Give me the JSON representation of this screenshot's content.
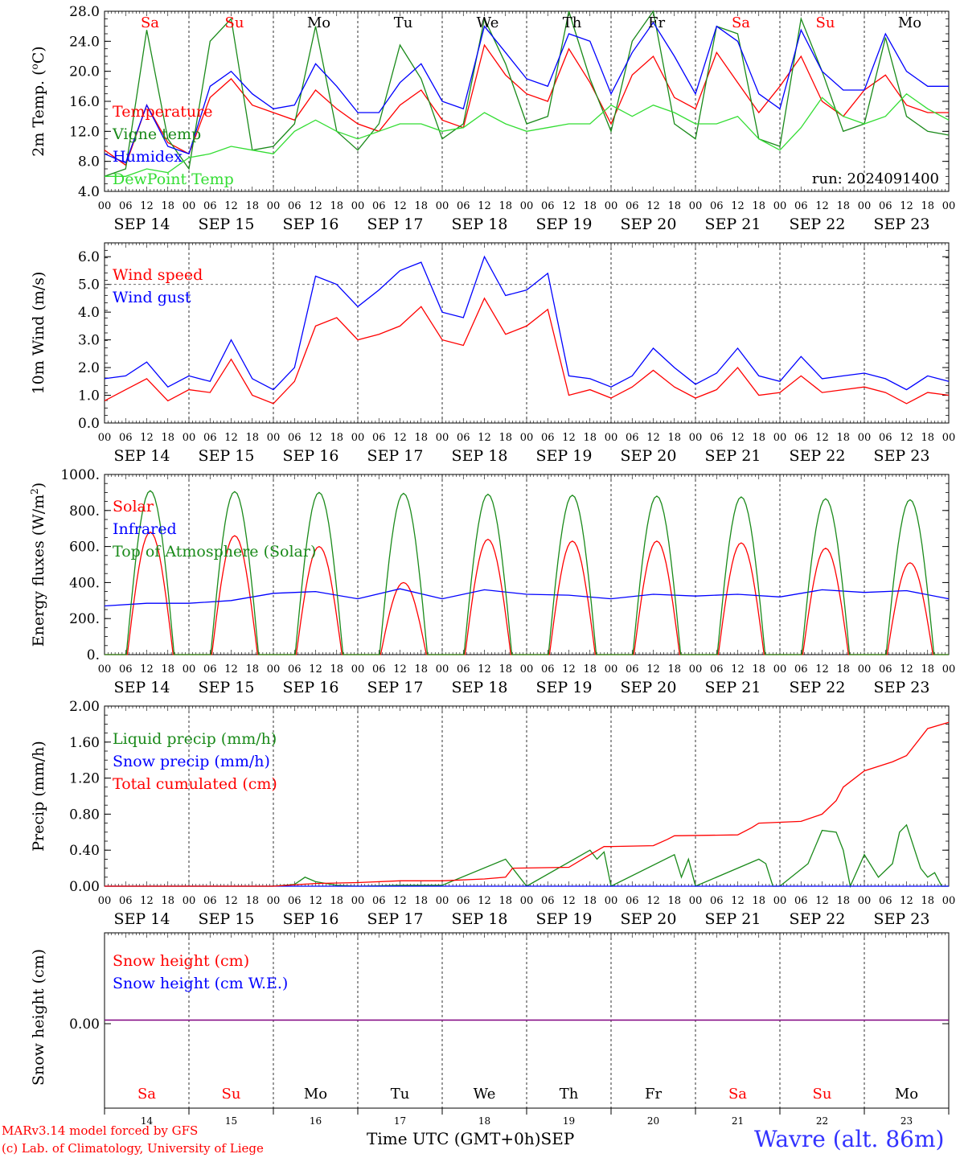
{
  "colors": {
    "red": "#ff0000",
    "green": "#1a8a1a",
    "blue": "#0000ff",
    "lightgreen": "#33dd33",
    "purple": "#800080",
    "black": "#000000",
    "station": "#3333ff"
  },
  "date_labels": [
    "SEP 14",
    "SEP 15",
    "SEP 16",
    "SEP 17",
    "SEP 18",
    "SEP 19",
    "SEP 20",
    "SEP 21",
    "SEP 22",
    "SEP 23"
  ],
  "hour_labels": [
    "00",
    "06",
    "12",
    "18"
  ],
  "end_hour_label": "00",
  "weekdays": [
    {
      "label": "Sa",
      "color": "#ff0000"
    },
    {
      "label": "Su",
      "color": "#ff0000"
    },
    {
      "label": "Mo",
      "color": "#000000"
    },
    {
      "label": "Tu",
      "color": "#000000"
    },
    {
      "label": "We",
      "color": "#000000"
    },
    {
      "label": "Th",
      "color": "#000000"
    },
    {
      "label": "Fr",
      "color": "#000000"
    },
    {
      "label": "Sa",
      "color": "#ff0000"
    },
    {
      "label": "Su",
      "color": "#ff0000"
    },
    {
      "label": "Mo",
      "color": "#000000"
    }
  ],
  "bottom_day_numbers": [
    "14",
    "15",
    "16",
    "17",
    "18",
    "19",
    "20",
    "21",
    "22",
    "23"
  ],
  "footer": {
    "credit_line1": "MARv3.14 model forced by GFS",
    "credit_line2": "(c) Lab. of Climatology, University of Liege",
    "time_axis_label": "Time UTC (GMT+0h)",
    "month_label": "SEP",
    "station": "Wavre (alt. 86m)"
  },
  "chart_data": [
    {
      "type": "line",
      "ylabel": "2m Temp. (oC)",
      "ylim": [
        4.0,
        28.0
      ],
      "yticks": [
        "4.0",
        "8.0",
        "12.0",
        "16.0",
        "20.0",
        "24.0",
        "28.0"
      ],
      "annotation": "run: 2024091400",
      "x_unit": "hours since SEP 14 00 UTC",
      "series": [
        {
          "name": "Temperature",
          "color": "#ff0000",
          "x": [
            0,
            6,
            12,
            18,
            24,
            30,
            36,
            42,
            48,
            54,
            60,
            66,
            72,
            78,
            84,
            90,
            96,
            102,
            108,
            114,
            120,
            126,
            132,
            138,
            144,
            150,
            156,
            162,
            168,
            174,
            180,
            186,
            192,
            198,
            204,
            210,
            216,
            222,
            228,
            234,
            240
          ],
          "values": [
            9.5,
            7.5,
            15.5,
            10.5,
            9.0,
            16.5,
            19.0,
            15.5,
            14.5,
            13.5,
            17.5,
            15.0,
            13.0,
            12.0,
            15.5,
            17.5,
            13.5,
            12.5,
            23.5,
            19.5,
            17.0,
            16.0,
            23.0,
            18.5,
            13.0,
            19.5,
            22.0,
            16.5,
            15.0,
            22.5,
            18.5,
            14.5,
            18.0,
            22.0,
            16.0,
            14.0,
            17.5,
            19.5,
            15.5,
            14.5,
            14.5
          ]
        },
        {
          "name": "Vigne temp",
          "color": "#1a8a1a",
          "x": [
            0,
            6,
            12,
            18,
            24,
            30,
            36,
            42,
            48,
            54,
            60,
            66,
            72,
            78,
            84,
            90,
            96,
            102,
            108,
            114,
            120,
            126,
            132,
            138,
            144,
            150,
            156,
            162,
            168,
            174,
            180,
            186,
            192,
            198,
            204,
            210,
            216,
            222,
            228,
            234,
            240
          ],
          "values": [
            6.0,
            7.0,
            25.5,
            11.0,
            7.0,
            24.0,
            27.0,
            9.5,
            10.0,
            13.0,
            26.0,
            12.0,
            9.5,
            13.0,
            23.5,
            19.0,
            11.0,
            13.0,
            27.0,
            21.0,
            13.0,
            14.0,
            28.0,
            19.0,
            12.0,
            24.0,
            28.0,
            13.0,
            11.0,
            26.0,
            25.0,
            11.0,
            10.0,
            27.0,
            20.0,
            12.0,
            13.0,
            24.5,
            14.0,
            12.0,
            11.5
          ]
        },
        {
          "name": "Humidex",
          "color": "#0000ff",
          "x": [
            0,
            6,
            12,
            18,
            24,
            30,
            36,
            42,
            48,
            54,
            60,
            66,
            72,
            78,
            84,
            90,
            96,
            102,
            108,
            114,
            120,
            126,
            132,
            138,
            144,
            150,
            156,
            162,
            168,
            174,
            180,
            186,
            192,
            198,
            204,
            210,
            216,
            222,
            228,
            234,
            240
          ],
          "values": [
            9.0,
            7.8,
            15.5,
            10.0,
            9.0,
            18.0,
            20.0,
            17.0,
            15.0,
            15.5,
            21.0,
            18.0,
            14.5,
            14.5,
            18.5,
            21.0,
            16.0,
            15.0,
            26.0,
            22.5,
            19.0,
            18.0,
            25.0,
            24.0,
            17.0,
            22.5,
            26.5,
            22.0,
            17.0,
            26.0,
            24.0,
            17.0,
            15.0,
            25.5,
            20.0,
            17.5,
            17.5,
            25.0,
            20.0,
            18.0,
            18.0
          ]
        },
        {
          "name": "DewPoint Temp",
          "color": "#33dd33",
          "x": [
            0,
            6,
            12,
            18,
            24,
            30,
            36,
            42,
            48,
            54,
            60,
            66,
            72,
            78,
            84,
            90,
            96,
            102,
            108,
            114,
            120,
            126,
            132,
            138,
            144,
            150,
            156,
            162,
            168,
            174,
            180,
            186,
            192,
            198,
            204,
            210,
            216,
            222,
            228,
            234,
            240
          ],
          "values": [
            6.0,
            6.0,
            7.0,
            6.5,
            8.5,
            9.0,
            10.0,
            9.5,
            9.0,
            12.0,
            13.5,
            12.0,
            11.0,
            12.0,
            13.0,
            13.0,
            12.0,
            12.5,
            14.5,
            13.0,
            12.0,
            12.5,
            13.0,
            13.0,
            15.5,
            14.0,
            15.5,
            14.5,
            13.0,
            13.0,
            14.0,
            11.0,
            9.5,
            12.5,
            16.5,
            14.0,
            13.0,
            14.0,
            17.0,
            15.0,
            13.5
          ]
        }
      ]
    },
    {
      "type": "line",
      "ylabel": "10m Wind (m/s)",
      "ylim": [
        0.0,
        6.5
      ],
      "yticks": [
        "0.0",
        "1.0",
        "2.0",
        "3.0",
        "4.0",
        "5.0",
        "6.0"
      ],
      "reference_line": 5.0,
      "x_unit": "hours since SEP 14 00 UTC",
      "series": [
        {
          "name": "Wind speed",
          "color": "#ff0000",
          "x": [
            0,
            6,
            12,
            18,
            24,
            30,
            36,
            42,
            48,
            54,
            60,
            66,
            72,
            78,
            84,
            90,
            96,
            102,
            108,
            114,
            120,
            126,
            132,
            138,
            144,
            150,
            156,
            162,
            168,
            174,
            180,
            186,
            192,
            198,
            204,
            210,
            216,
            222,
            228,
            234,
            240
          ],
          "values": [
            0.8,
            1.2,
            1.6,
            0.8,
            1.2,
            1.1,
            2.3,
            1.0,
            0.7,
            1.5,
            3.5,
            3.8,
            3.0,
            3.2,
            3.5,
            4.2,
            3.0,
            2.8,
            4.5,
            3.2,
            3.5,
            4.1,
            1.0,
            1.2,
            0.9,
            1.3,
            1.9,
            1.3,
            0.9,
            1.2,
            2.0,
            1.0,
            1.1,
            1.7,
            1.1,
            1.2,
            1.3,
            1.1,
            0.7,
            1.1,
            1.0
          ]
        },
        {
          "name": "Wind gust",
          "color": "#0000ff",
          "x": [
            0,
            6,
            12,
            18,
            24,
            30,
            36,
            42,
            48,
            54,
            60,
            66,
            72,
            78,
            84,
            90,
            96,
            102,
            108,
            114,
            120,
            126,
            132,
            138,
            144,
            150,
            156,
            162,
            168,
            174,
            180,
            186,
            192,
            198,
            204,
            210,
            216,
            222,
            228,
            234,
            240
          ],
          "values": [
            1.6,
            1.7,
            2.2,
            1.3,
            1.7,
            1.5,
            3.0,
            1.6,
            1.2,
            2.0,
            5.3,
            5.0,
            4.2,
            4.8,
            5.5,
            5.8,
            4.0,
            3.8,
            6.0,
            4.6,
            4.8,
            5.4,
            1.7,
            1.6,
            1.3,
            1.7,
            2.7,
            2.0,
            1.4,
            1.8,
            2.7,
            1.7,
            1.5,
            2.4,
            1.6,
            1.7,
            1.8,
            1.6,
            1.2,
            1.7,
            1.5
          ]
        }
      ]
    },
    {
      "type": "line",
      "ylabel": "Energy fluxes (W/m2)",
      "ylim": [
        0,
        1000
      ],
      "yticks": [
        "0.",
        "200.",
        "400.",
        "600.",
        "800.",
        "1000."
      ],
      "x_unit": "hours since SEP 14 00 UTC",
      "series": [
        {
          "name": "Solar",
          "color": "#ff0000",
          "daily_peak_hour": 13,
          "daily_half_width_hours": 6.5,
          "daily_peaks": [
            680,
            660,
            600,
            400,
            640,
            630,
            630,
            620,
            590,
            510
          ]
        },
        {
          "name": "Infrared",
          "color": "#0000ff",
          "x": [
            0,
            12,
            24,
            36,
            48,
            60,
            72,
            84,
            96,
            108,
            120,
            132,
            144,
            156,
            168,
            180,
            192,
            204,
            216,
            228,
            240
          ],
          "values": [
            270,
            285,
            285,
            300,
            340,
            350,
            310,
            365,
            310,
            360,
            335,
            330,
            310,
            335,
            325,
            335,
            320,
            360,
            345,
            355,
            310
          ]
        },
        {
          "name": "Top of Atmosphere (Solar)",
          "color": "#1a8a1a",
          "daily_peak_hour": 13,
          "daily_half_width_hours": 6.8,
          "daily_peaks": [
            910,
            905,
            900,
            895,
            890,
            885,
            880,
            875,
            865,
            860
          ]
        }
      ]
    },
    {
      "type": "line",
      "ylabel": "Precip (mm/h)",
      "ylim": [
        0.0,
        2.0
      ],
      "yticks": [
        "0.00",
        "0.40",
        "0.80",
        "1.20",
        "1.60",
        "2.00"
      ],
      "x_unit": "hours since SEP 14 00 UTC",
      "series": [
        {
          "name": "Liquid precip (mm/h)",
          "color": "#1a8a1a",
          "x": [
            0,
            48,
            54,
            57,
            60,
            63,
            66,
            72,
            84,
            96,
            114,
            117,
            120,
            138,
            140,
            142,
            144,
            162,
            164,
            166,
            168,
            186,
            188,
            190,
            192,
            200,
            204,
            208,
            210,
            212,
            216,
            220,
            224,
            226,
            228,
            232,
            234,
            236,
            238,
            240
          ],
          "values": [
            0,
            0,
            0.02,
            0.1,
            0.05,
            0.03,
            0.01,
            0.0,
            0.01,
            0.01,
            0.3,
            0.15,
            0,
            0.4,
            0.3,
            0.38,
            0,
            0.35,
            0.1,
            0.3,
            0,
            0.3,
            0.25,
            0,
            0,
            0.25,
            0.62,
            0.6,
            0.4,
            0,
            0.35,
            0.1,
            0.25,
            0.6,
            0.68,
            0.2,
            0.1,
            0.15,
            0,
            0
          ]
        },
        {
          "name": "Snow precip (mm/h)",
          "color": "#0000ff",
          "x": [
            0,
            240
          ],
          "values": [
            0,
            0
          ]
        },
        {
          "name": "Total cumulated (cm)",
          "color": "#ff0000",
          "x": [
            0,
            48,
            60,
            72,
            84,
            96,
            108,
            114,
            116,
            132,
            138,
            142,
            144,
            156,
            160,
            162,
            180,
            184,
            186,
            198,
            204,
            208,
            210,
            216,
            224,
            228,
            234,
            240
          ],
          "values": [
            0,
            0,
            0.03,
            0.04,
            0.06,
            0.06,
            0.08,
            0.1,
            0.2,
            0.21,
            0.35,
            0.44,
            0.44,
            0.45,
            0.52,
            0.56,
            0.57,
            0.65,
            0.7,
            0.72,
            0.8,
            0.95,
            1.1,
            1.28,
            1.38,
            1.45,
            1.75,
            1.82
          ]
        }
      ]
    },
    {
      "type": "line",
      "ylabel": "Snow height (cm)",
      "yticks": [
        "0.00"
      ],
      "x_unit": "hours since SEP 14 00 UTC",
      "series": [
        {
          "name": "Snow height (cm)",
          "color": "#ff0000",
          "x": [
            0,
            240
          ],
          "values": [
            0,
            0
          ]
        },
        {
          "name": "Snow height (cm W.E.)",
          "color": "#0000ff",
          "x": [
            0,
            240
          ],
          "values": [
            0,
            0
          ]
        }
      ]
    }
  ]
}
